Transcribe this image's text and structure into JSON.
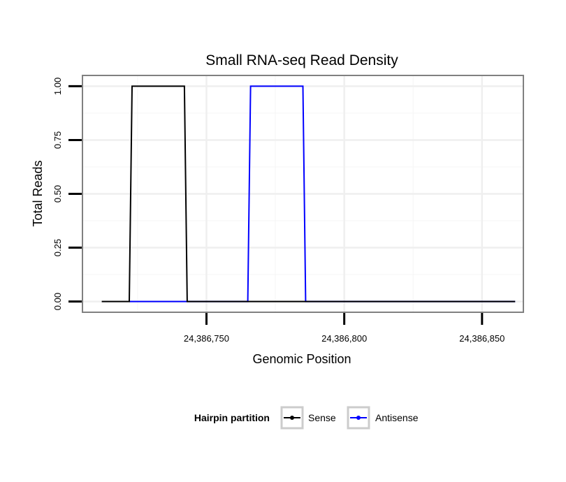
{
  "chart_data": {
    "type": "line",
    "title": "Small RNA-seq Read Density",
    "xlabel": "Genomic Position",
    "ylabel": "Total Reads",
    "xlim": [
      24386705,
      24386865
    ],
    "ylim": [
      -0.05,
      1.05
    ],
    "x_ticks": [
      24386750,
      24386800,
      24386850
    ],
    "x_tick_labels": [
      "24,386,750",
      "24,386,800",
      "24,386,850"
    ],
    "y_ticks": [
      0,
      0.25,
      0.5,
      0.75,
      1
    ],
    "y_tick_labels": [
      "0.00",
      "0.25",
      "0.50",
      "0.75",
      "1.00"
    ],
    "grid": true,
    "legend": {
      "title": "Hairpin partition",
      "position": "bottom"
    },
    "series": [
      {
        "name": "Sense",
        "color": "#000000",
        "x": [
          24386712,
          24386722,
          24386723,
          24386742,
          24386743,
          24386862
        ],
        "y": [
          0,
          0,
          1,
          1,
          0,
          0
        ]
      },
      {
        "name": "Antisense",
        "color": "#0000ff",
        "x": [
          24386722,
          24386743,
          24386765,
          24386766,
          24386785,
          24386786,
          24386862
        ],
        "y": [
          0,
          0,
          0,
          1,
          1,
          0,
          0
        ]
      }
    ]
  }
}
